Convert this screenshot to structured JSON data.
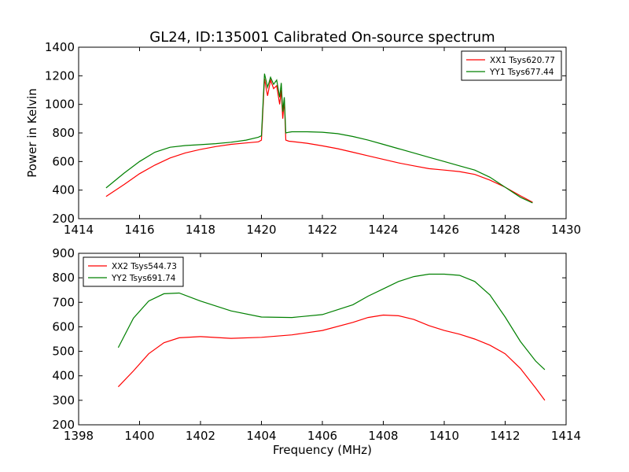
{
  "figure": {
    "title": "GL24, ID:135001 Calibrated On-source spectrum",
    "ylabel": "Power in Kelvin",
    "xlabel": "Frequency (MHz)"
  },
  "chart_data": [
    {
      "type": "line",
      "title": "GL24, ID:135001 Calibrated On-source spectrum",
      "ylabel": "Power in Kelvin",
      "xlabel": "",
      "xlim": [
        1414,
        1430
      ],
      "ylim": [
        200,
        1400
      ],
      "xticks": [
        "1414",
        "1416",
        "1418",
        "1420",
        "1422",
        "1424",
        "1426",
        "1428",
        "1430"
      ],
      "yticks": [
        "200",
        "400",
        "600",
        "800",
        "1000",
        "1200",
        "1400"
      ],
      "legend_loc": "upper right",
      "series": [
        {
          "name": "XX1 Tsys620.77",
          "color": "#ff0000",
          "x": [
            1414.9,
            1415.5,
            1416.0,
            1416.5,
            1417.0,
            1417.5,
            1418.0,
            1418.5,
            1419.0,
            1419.5,
            1419.9,
            1420.0,
            1420.1,
            1420.2,
            1420.3,
            1420.4,
            1420.5,
            1420.6,
            1420.65,
            1420.7,
            1420.75,
            1420.8,
            1420.9,
            1421.0,
            1421.5,
            1422.0,
            1422.5,
            1423.0,
            1423.5,
            1424.0,
            1424.5,
            1425.0,
            1425.5,
            1426.0,
            1426.5,
            1427.0,
            1427.5,
            1428.0,
            1428.5,
            1428.9
          ],
          "y": [
            355,
            440,
            515,
            575,
            625,
            660,
            685,
            705,
            720,
            730,
            738,
            750,
            1180,
            1060,
            1170,
            1110,
            1130,
            1000,
            1100,
            900,
            1030,
            750,
            742,
            740,
            728,
            710,
            690,
            665,
            640,
            615,
            590,
            570,
            550,
            540,
            530,
            510,
            470,
            420,
            360,
            315
          ]
        },
        {
          "name": "YY1 Tsys677.44",
          "color": "#008000",
          "x": [
            1414.9,
            1415.5,
            1416.0,
            1416.5,
            1417.0,
            1417.5,
            1418.0,
            1418.5,
            1419.0,
            1419.5,
            1419.9,
            1420.0,
            1420.1,
            1420.2,
            1420.3,
            1420.4,
            1420.5,
            1420.6,
            1420.65,
            1420.7,
            1420.75,
            1420.8,
            1420.9,
            1421.0,
            1421.5,
            1422.0,
            1422.5,
            1423.0,
            1423.5,
            1424.0,
            1424.5,
            1425.0,
            1425.5,
            1426.0,
            1426.5,
            1427.0,
            1427.5,
            1428.0,
            1428.5,
            1428.9
          ],
          "y": [
            415,
            520,
            600,
            665,
            700,
            712,
            718,
            725,
            735,
            750,
            770,
            780,
            1215,
            1120,
            1190,
            1140,
            1170,
            1050,
            1150,
            950,
            1050,
            800,
            805,
            808,
            808,
            805,
            795,
            775,
            750,
            720,
            690,
            660,
            630,
            600,
            570,
            540,
            490,
            420,
            350,
            310
          ]
        }
      ]
    },
    {
      "type": "line",
      "title": "",
      "ylabel": "",
      "xlabel": "Frequency (MHz)",
      "xlim": [
        1398,
        1414
      ],
      "ylim": [
        200,
        900
      ],
      "xticks": [
        "1398",
        "1400",
        "1402",
        "1404",
        "1406",
        "1408",
        "1410",
        "1412",
        "1414"
      ],
      "yticks": [
        "200",
        "300",
        "400",
        "500",
        "600",
        "700",
        "800",
        "900"
      ],
      "legend_loc": "upper left",
      "series": [
        {
          "name": "XX2 Tsys544.73",
          "color": "#ff0000",
          "x": [
            1399.3,
            1399.8,
            1400.3,
            1400.8,
            1401.3,
            1402.0,
            1403.0,
            1404.0,
            1405.0,
            1406.0,
            1407.0,
            1407.5,
            1408.0,
            1408.5,
            1409.0,
            1409.5,
            1410.0,
            1410.5,
            1411.0,
            1411.5,
            1412.0,
            1412.5,
            1413.0,
            1413.3
          ],
          "y": [
            355,
            420,
            490,
            535,
            555,
            560,
            553,
            557,
            567,
            585,
            618,
            638,
            648,
            645,
            630,
            605,
            585,
            570,
            550,
            525,
            490,
            430,
            350,
            300
          ]
        },
        {
          "name": "YY2 Tsys691.74",
          "color": "#008000",
          "x": [
            1399.3,
            1399.8,
            1400.3,
            1400.8,
            1401.3,
            1402.0,
            1403.0,
            1404.0,
            1405.0,
            1406.0,
            1407.0,
            1407.5,
            1408.0,
            1408.5,
            1409.0,
            1409.5,
            1410.0,
            1410.5,
            1411.0,
            1411.5,
            1412.0,
            1412.5,
            1413.0,
            1413.3
          ],
          "y": [
            515,
            635,
            705,
            735,
            738,
            705,
            665,
            640,
            638,
            650,
            690,
            725,
            755,
            785,
            805,
            815,
            815,
            810,
            785,
            730,
            640,
            540,
            460,
            425
          ]
        }
      ]
    }
  ]
}
